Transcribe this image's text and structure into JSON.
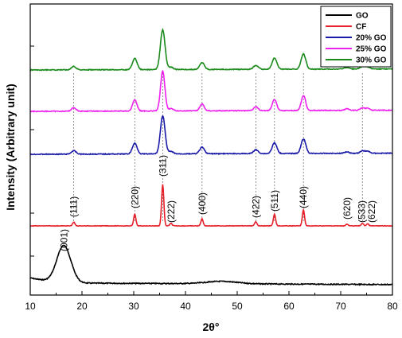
{
  "chart_data": {
    "type": "line",
    "title": "",
    "xlabel": "2θ°",
    "ylabel": "Intensity (Arbitrary unit)",
    "xlim": [
      10,
      80
    ],
    "xticks": [
      10,
      20,
      30,
      40,
      50,
      60,
      70,
      80
    ],
    "y_tick_labels": "none",
    "grid": false,
    "legend_position": "top-right",
    "series": [
      {
        "name": "GO",
        "color": "#000000"
      },
      {
        "name": "CF",
        "color": "#e8202a"
      },
      {
        "name": "20% GO",
        "color": "#1a1aa8"
      },
      {
        "name": "25% GO",
        "color": "#ee22ee"
      },
      {
        "name": "30% GO",
        "color": "#1a8a1a"
      }
    ],
    "peak_labels": [
      {
        "label": "(001)",
        "x": 16.5
      },
      {
        "label": "(111)",
        "x": 18.4
      },
      {
        "label": "(220)",
        "x": 30.2
      },
      {
        "label": "(311)",
        "x": 35.6
      },
      {
        "label": "(222)",
        "x": 37.2
      },
      {
        "label": "(400)",
        "x": 43.2
      },
      {
        "label": "(422)",
        "x": 53.6
      },
      {
        "label": "(511)",
        "x": 57.2
      },
      {
        "label": "(440)",
        "x": 62.8
      },
      {
        "label": "(620)",
        "x": 71.2
      },
      {
        "label": "(533)",
        "x": 74.2
      },
      {
        "label": "(622)",
        "x": 75.2
      }
    ]
  }
}
